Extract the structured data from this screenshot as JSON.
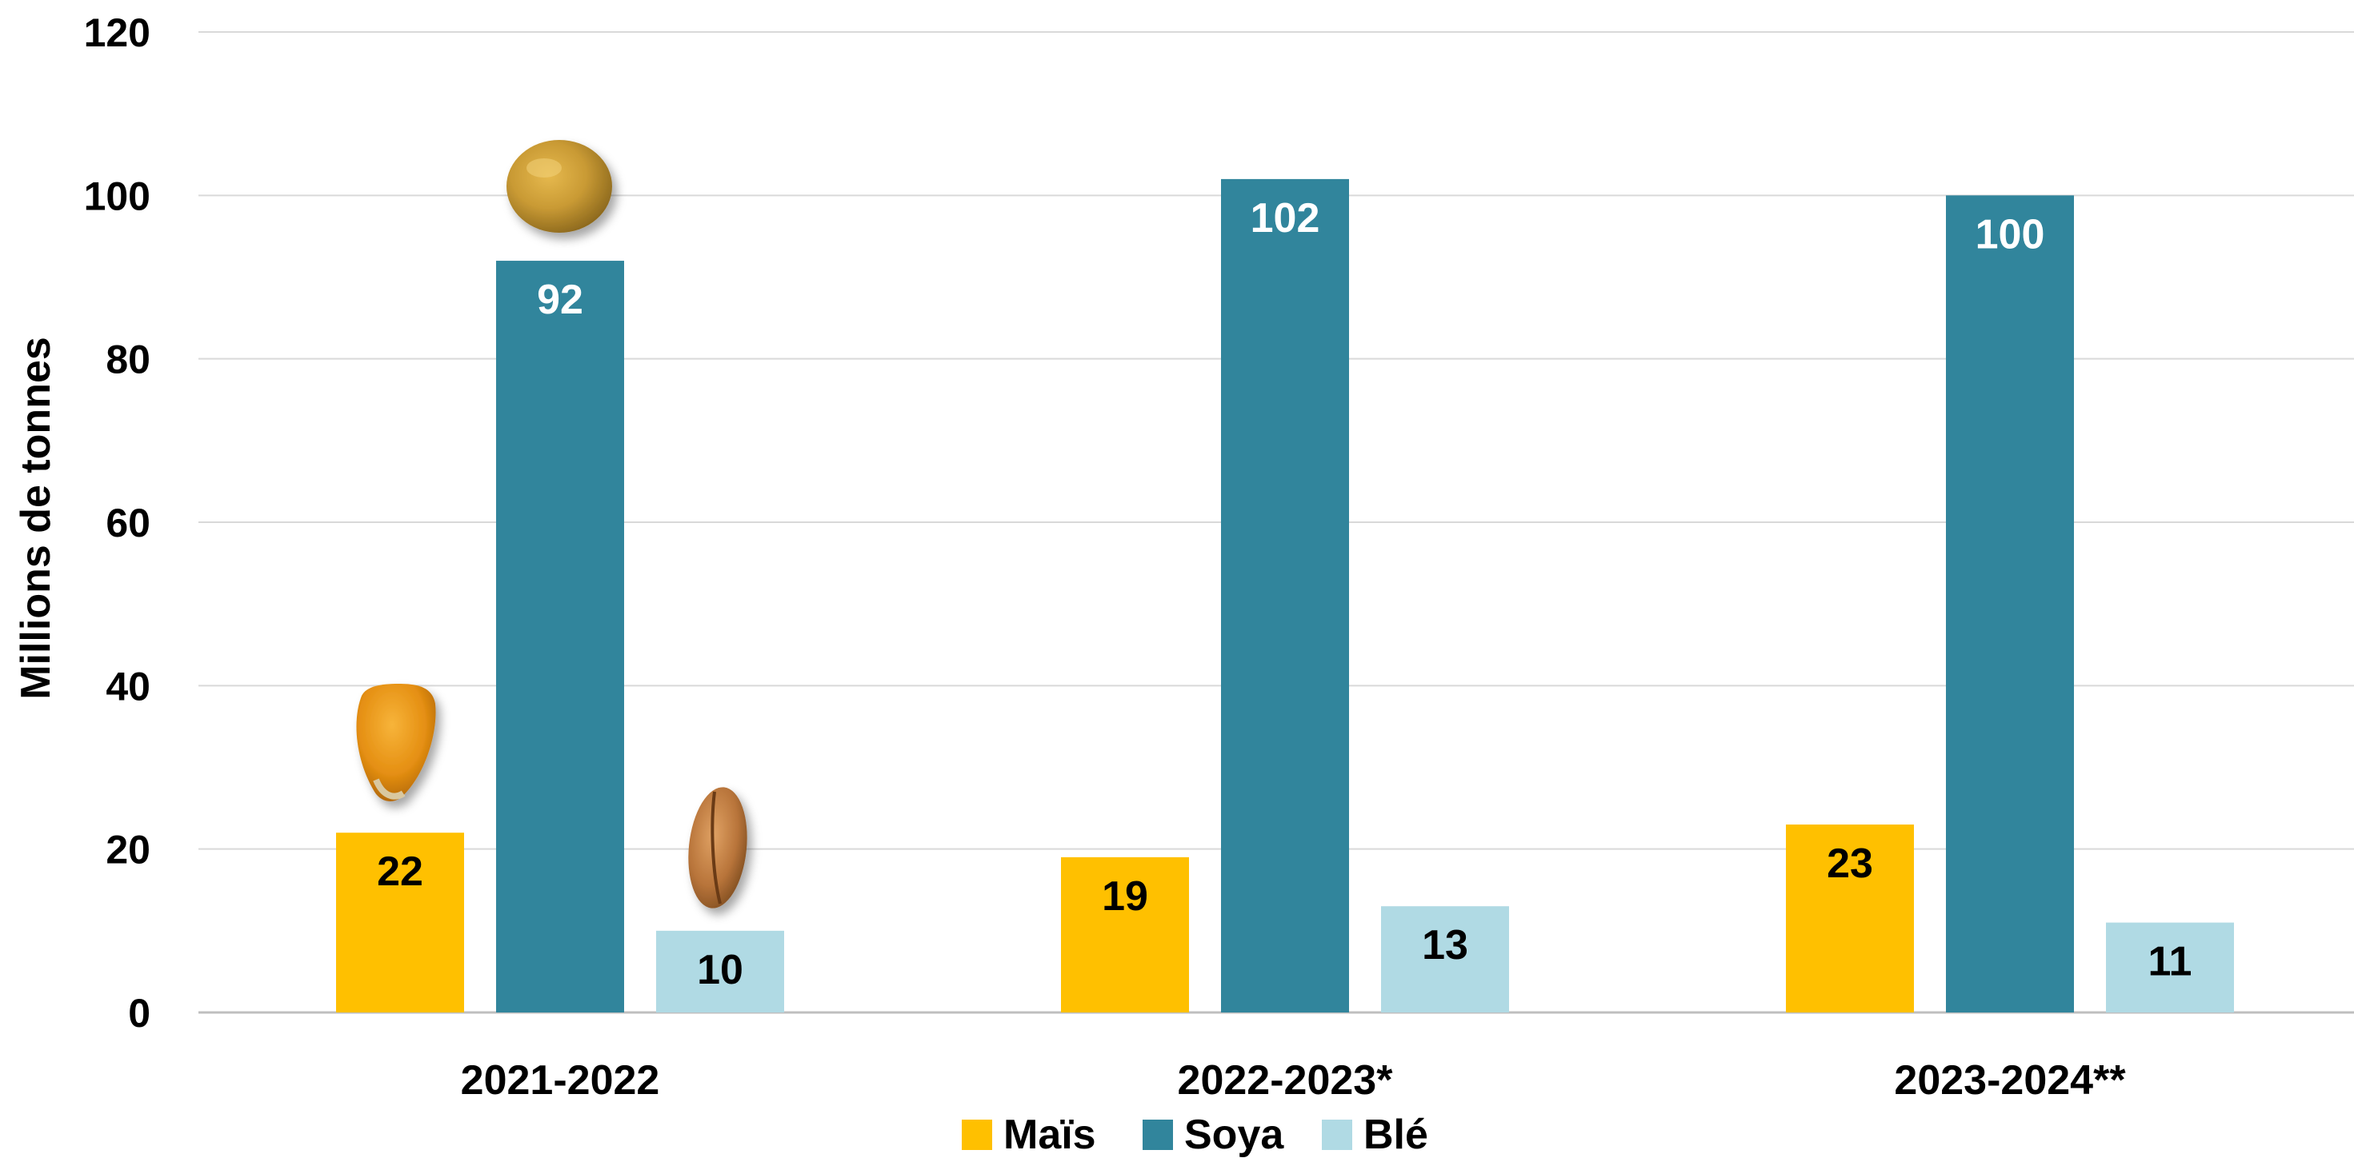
{
  "chart_data": {
    "type": "bar",
    "categories": [
      "2021-2022",
      "2022-2023*",
      "2023-2024**"
    ],
    "series": [
      {
        "name": "Maïs",
        "values": [
          22,
          19,
          23
        ],
        "color": "#FFC000",
        "label_color": "#000000"
      },
      {
        "name": "Soya",
        "values": [
          92,
          102,
          100
        ],
        "color": "#31859C",
        "label_color": "#FFFFFF"
      },
      {
        "name": "Blé",
        "values": [
          10,
          13,
          11
        ],
        "color": "#B0DAE4",
        "label_color": "#000000"
      }
    ],
    "ylabel": "Millions de tonnes",
    "ylim": [
      0,
      120
    ],
    "yticks": [
      0,
      20,
      40,
      60,
      80,
      100,
      120
    ],
    "grid": true,
    "legend_position": "bottom-center",
    "pictures": [
      "corn-kernel",
      "soybean",
      "wheat-grain"
    ]
  }
}
